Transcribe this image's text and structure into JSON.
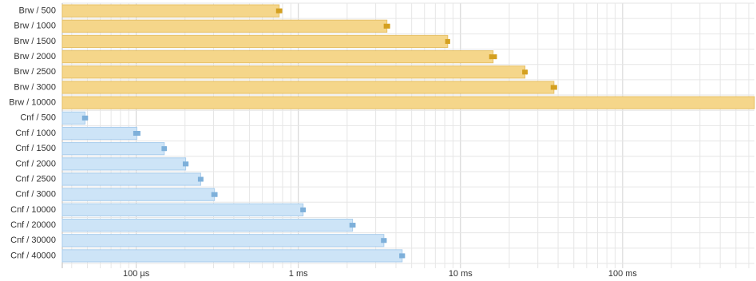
{
  "chart_data": {
    "type": "bar",
    "orientation": "horizontal",
    "log_x": true,
    "grid": true,
    "xlim": [
      35,
      650000
    ],
    "xticks": [
      {
        "value": 100,
        "label": "100 µs"
      },
      {
        "value": 1000,
        "label": "1 ms"
      },
      {
        "value": 10000,
        "label": "10 ms"
      },
      {
        "value": 100000,
        "label": "100 ms"
      }
    ],
    "minor_xticks": [
      40,
      50,
      60,
      70,
      80,
      90,
      200,
      300,
      400,
      500,
      600,
      700,
      800,
      900,
      2000,
      3000,
      4000,
      5000,
      6000,
      7000,
      8000,
      9000,
      20000,
      30000,
      40000,
      50000,
      60000,
      70000,
      80000,
      90000,
      200000,
      300000,
      400000,
      500000,
      600000
    ],
    "series": [
      {
        "color": "#f5d68a",
        "edge_color": "#e6c067",
        "error_color": "#d4a020",
        "categories": [
          "Brw / 500",
          "Brw / 1000",
          "Brw / 1500",
          "Brw / 2000",
          "Brw / 2500",
          "Brw / 3000",
          "Brw / 10000"
        ],
        "values": [
          762,
          3520,
          8340,
          15900,
          25000,
          37700,
          650000
        ],
        "errors": [
          25,
          120,
          200,
          700,
          700,
          1300,
          0
        ]
      },
      {
        "color": "#cde4f7",
        "edge_color": "#a9cdec",
        "error_color": "#7eb0da",
        "categories": [
          "Cnf / 500",
          "Cnf / 1000",
          "Cnf / 1500",
          "Cnf / 2000",
          "Cnf / 2500",
          "Cnf / 3000",
          "Cnf / 10000",
          "Cnf / 20000",
          "Cnf / 30000",
          "Cnf / 40000"
        ],
        "values": [
          48.4,
          101,
          149,
          202,
          250,
          304,
          1070,
          2160,
          3370,
          4370
        ],
        "errors": [
          1.5,
          4,
          4,
          6,
          7,
          10,
          30,
          70,
          100,
          130
        ]
      }
    ]
  }
}
